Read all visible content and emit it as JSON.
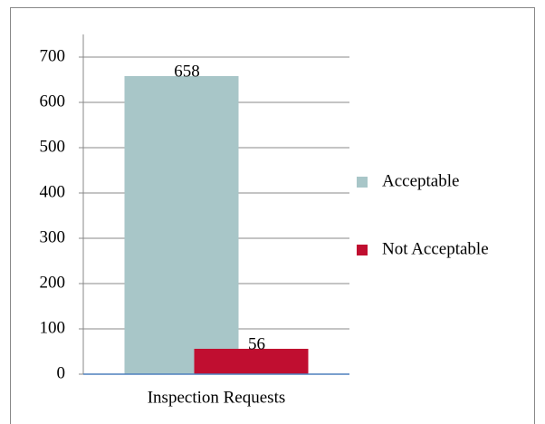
{
  "chart_data": {
    "type": "bar",
    "categories": [
      "Inspection Requests"
    ],
    "series": [
      {
        "name": "Acceptable",
        "color": "#a8c6c8",
        "values": [
          658
        ]
      },
      {
        "name": "Not Acceptable",
        "color": "#c00e30",
        "values": [
          56
        ]
      }
    ],
    "ylim": [
      0,
      750
    ],
    "yticks": [
      0,
      100,
      200,
      300,
      400,
      500,
      600,
      700
    ],
    "grid": true,
    "legend": "right"
  }
}
